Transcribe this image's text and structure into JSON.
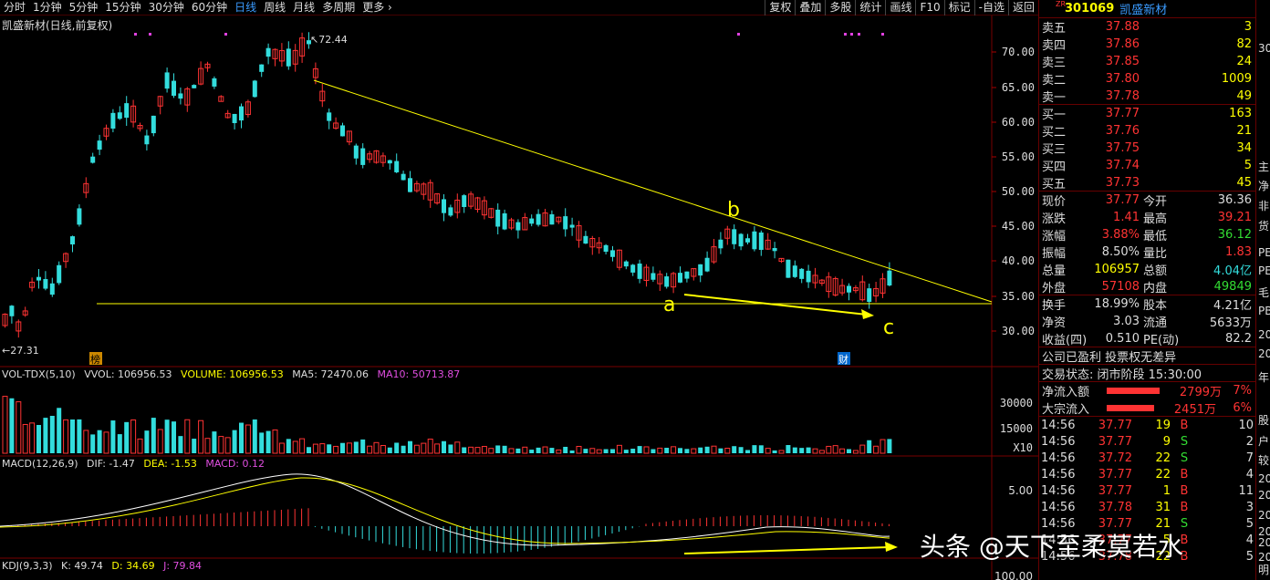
{
  "toolbar": {
    "left": [
      "分时",
      "1分钟",
      "5分钟",
      "15分钟",
      "30分钟",
      "60分钟",
      "日线",
      "周线",
      "月线",
      "多周期",
      "更多 ›"
    ],
    "active": "日线",
    "right": [
      "复权",
      "叠加",
      "多股",
      "统计",
      "画线",
      "F10",
      "标记",
      "-自选",
      "返回"
    ]
  },
  "chart_title": "凯盛新材(日线,前复权)",
  "max_label": "72.44",
  "min_label": "27.31",
  "badge1": "榜",
  "badge2": "财",
  "y_axis": [
    "70.00",
    "65.00",
    "60.00",
    "55.00",
    "50.00",
    "45.00",
    "40.00",
    "35.00",
    "30.00"
  ],
  "vol_axis": [
    "30000",
    "15000",
    "X10"
  ],
  "macd_axis": [
    "5.00"
  ],
  "kdj_axis": [
    "100.00"
  ],
  "annot": {
    "a": "a",
    "b": "b",
    "c": "c"
  },
  "vol_header": {
    "name": "VOL-TDX(5,10)",
    "vvol": "VVOL: 106956.53",
    "volume": "VOLUME: 106956.53",
    "ma5": "MA5: 72470.06",
    "ma10": "MA10: 50713.87"
  },
  "macd_header": {
    "name": "MACD(12,26,9)",
    "dif": "DIF: -1.47",
    "dea": "DEA: -1.53",
    "macd": "MACD: 0.12"
  },
  "kdj_header": {
    "name": "KDJ(9,3,3)",
    "k": "K: 49.74",
    "d": "D: 34.69",
    "j": "J: 79.84"
  },
  "colors": {
    "up": "#ff3333",
    "down": "#33dddd",
    "trend": "#ffff00"
  },
  "panel": {
    "zr": "ZR",
    "code": "301069",
    "name": "凯盛新材",
    "sells": [
      {
        "l": "卖五",
        "p": "37.88",
        "v": "3"
      },
      {
        "l": "卖四",
        "p": "37.86",
        "v": "82"
      },
      {
        "l": "卖三",
        "p": "37.85",
        "v": "24"
      },
      {
        "l": "卖二",
        "p": "37.80",
        "v": "1009"
      },
      {
        "l": "卖一",
        "p": "37.78",
        "v": "49"
      }
    ],
    "buys": [
      {
        "l": "买一",
        "p": "37.77",
        "v": "163"
      },
      {
        "l": "买二",
        "p": "37.76",
        "v": "21"
      },
      {
        "l": "买三",
        "p": "37.75",
        "v": "34"
      },
      {
        "l": "买四",
        "p": "37.74",
        "v": "5"
      },
      {
        "l": "买五",
        "p": "37.73",
        "v": "45"
      }
    ],
    "quote": [
      {
        "l1": "现价",
        "v1": "37.77",
        "c1": "red",
        "l2": "今开",
        "v2": "36.36",
        "c2": "white"
      },
      {
        "l1": "涨跌",
        "v1": "1.41",
        "c1": "red",
        "l2": "最高",
        "v2": "39.21",
        "c2": "red"
      },
      {
        "l1": "涨幅",
        "v1": "3.88%",
        "c1": "red",
        "l2": "最低",
        "v2": "36.12",
        "c2": "green"
      },
      {
        "l1": "振幅",
        "v1": "8.50%",
        "c1": "white",
        "l2": "量比",
        "v2": "1.83",
        "c2": "red"
      },
      {
        "l1": "总量",
        "v1": "106957",
        "c1": "yellow",
        "l2": "总额",
        "v2": "4.04亿",
        "c2": "cyan"
      },
      {
        "l1": "外盘",
        "v1": "57108",
        "c1": "red",
        "l2": "内盘",
        "v2": "49849",
        "c2": "green"
      }
    ],
    "quote2": [
      {
        "l1": "换手",
        "v1": "18.99%",
        "l2": "股本",
        "v2": "4.21亿"
      },
      {
        "l1": "净资",
        "v1": "3.03",
        "l2": "流通",
        "v2": "5633万"
      },
      {
        "l1": "收益(四)",
        "v1": "0.510",
        "l2": "PE(动)",
        "v2": "82.2"
      }
    ],
    "info1": "公司已盈利 投票权无差异",
    "info2": "交易状态: 闭市阶段 15:30:00",
    "flow": [
      {
        "l": "净流入额",
        "v": "2799万",
        "p": "7%"
      },
      {
        "l": "大宗流入",
        "v": "2451万",
        "p": "6%"
      }
    ],
    "ticks": [
      {
        "t": "14:56",
        "p": "37.77",
        "v": "19",
        "d": "B",
        "n": "10",
        "c": "red"
      },
      {
        "t": "14:56",
        "p": "37.77",
        "v": "9",
        "d": "S",
        "n": "2",
        "c": "green"
      },
      {
        "t": "14:56",
        "p": "37.72",
        "v": "22",
        "d": "S",
        "n": "7",
        "c": "green"
      },
      {
        "t": "14:56",
        "p": "37.77",
        "v": "22",
        "d": "B",
        "n": "4",
        "c": "red"
      },
      {
        "t": "14:56",
        "p": "37.77",
        "v": "1",
        "d": "B",
        "n": "11",
        "c": "red"
      },
      {
        "t": "14:56",
        "p": "37.78",
        "v": "31",
        "d": "B",
        "n": "3",
        "c": "red"
      },
      {
        "t": "14:56",
        "p": "37.77",
        "v": "21",
        "d": "S",
        "n": "5",
        "c": "green"
      },
      {
        "t": "14:56",
        "p": "37.77",
        "v": "5",
        "d": "B",
        "n": "4",
        "c": "red"
      },
      {
        "t": "14:56",
        "p": "37.78",
        "v": "22",
        "d": "B",
        "n": "5",
        "c": "red"
      }
    ]
  },
  "edge": [
    "30",
    "主",
    "净",
    "非",
    "货",
    "PE",
    "PE",
    "毛",
    "PB",
    "20",
    "20",
    "年",
    "股",
    "户",
    "较",
    "20",
    "20",
    "20",
    "20",
    "20",
    "20",
    "明"
  ],
  "watermark": "头条 @天下至柔莫若水"
}
